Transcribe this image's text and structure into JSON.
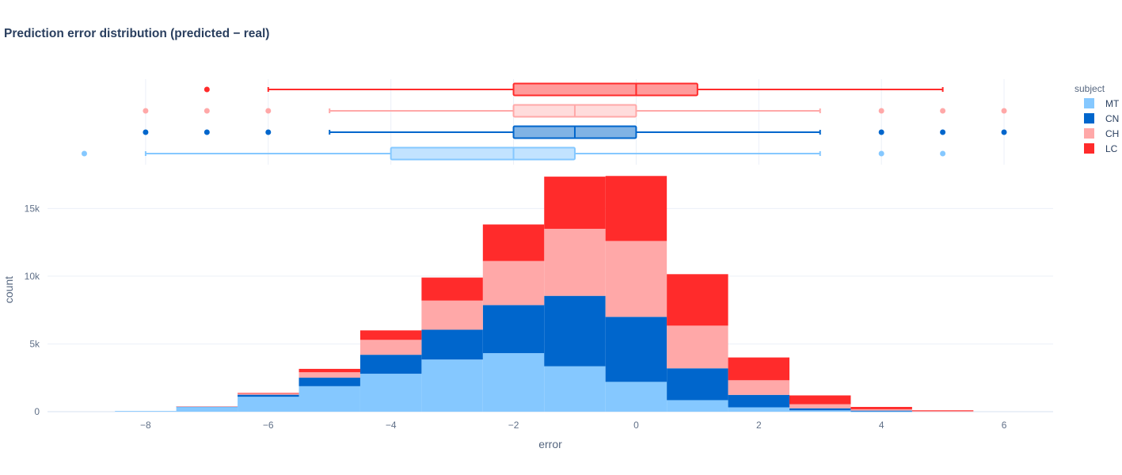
{
  "chart_data": {
    "type": "bar",
    "title": "Prediction error distribution (predicted − real)",
    "xlabel": "error",
    "ylabel": "count",
    "xlim": [
      -9.6,
      6.8
    ],
    "ylim": [
      0,
      18000
    ],
    "x_ticks": [
      -8,
      -6,
      -4,
      -2,
      0,
      2,
      4,
      6
    ],
    "x_tick_labels": [
      "−8",
      "−6",
      "−4",
      "−2",
      "0",
      "2",
      "4",
      "6"
    ],
    "y_ticks": [
      0,
      5000,
      10000,
      15000
    ],
    "y_tick_labels": [
      "0",
      "5k",
      "10k",
      "15k"
    ],
    "bin_width": 1,
    "bins": [
      -8,
      -7,
      -6,
      -5,
      -4,
      -3,
      -2,
      -1,
      0,
      1,
      2,
      3,
      4,
      5
    ],
    "barmode": "stack",
    "legend": {
      "title": "subject",
      "position": "top-right"
    },
    "series": [
      {
        "name": "MT",
        "color": "#85c8ff",
        "values": [
          50,
          380,
          1100,
          1880,
          2800,
          3850,
          4320,
          3350,
          2200,
          850,
          320,
          100,
          20,
          0
        ]
      },
      {
        "name": "CN",
        "color": "#0066cc",
        "values": [
          0,
          10,
          150,
          630,
          1400,
          2200,
          3550,
          5200,
          4800,
          2350,
          920,
          150,
          60,
          0
        ]
      },
      {
        "name": "CH",
        "color": "#ffa8a8",
        "values": [
          0,
          10,
          100,
          400,
          1100,
          2150,
          3250,
          4950,
          5600,
          3150,
          1080,
          300,
          100,
          40
        ]
      },
      {
        "name": "LC",
        "color": "#ff2b2b",
        "values": [
          0,
          0,
          30,
          250,
          700,
          1700,
          2700,
          3850,
          4800,
          3800,
          1680,
          650,
          170,
          60
        ]
      }
    ],
    "box_plots": [
      {
        "name": "LC",
        "color": "#ff2b2b",
        "fill": "#ff9b9b",
        "q1": -2,
        "median": 0,
        "q3": 1,
        "whisker_low": -6,
        "whisker_high": 5,
        "outliers": [
          -7
        ]
      },
      {
        "name": "CH",
        "color": "#ffa8a8",
        "fill": "#ffdcdc",
        "q1": -2,
        "median": -1,
        "q3": 0,
        "whisker_low": -5,
        "whisker_high": 3,
        "outliers": [
          -8,
          -7,
          -6,
          4,
          5,
          6
        ]
      },
      {
        "name": "CN",
        "color": "#0066cc",
        "fill": "#80b3e5",
        "q1": -2,
        "median": -1,
        "q3": 0,
        "whisker_low": -5,
        "whisker_high": 3,
        "outliers": [
          -8,
          -7,
          -6,
          4,
          5,
          6
        ]
      },
      {
        "name": "MT",
        "color": "#85c8ff",
        "fill": "#c2e3ff",
        "q1": -4,
        "median": -2,
        "q3": -1,
        "whisker_low": -8,
        "whisker_high": 3,
        "outliers": [
          -9,
          4,
          5
        ]
      }
    ]
  }
}
